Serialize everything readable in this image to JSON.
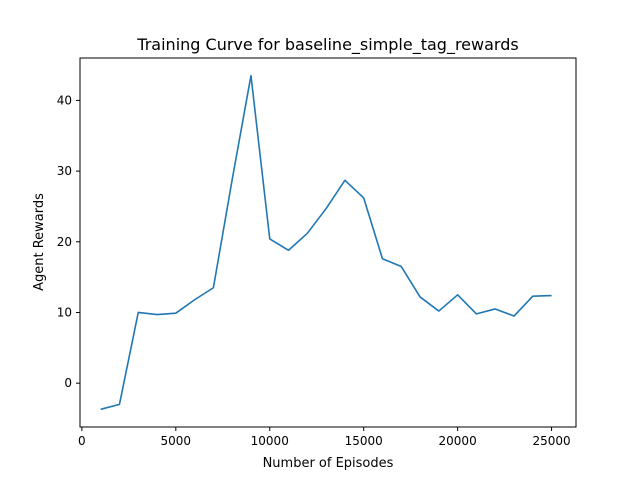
{
  "chart_data": {
    "type": "line",
    "title": "Training Curve for baseline_simple_tag_rewards",
    "xlabel": "Number of Episodes",
    "ylabel": "Agent Rewards",
    "xlim": [
      -100,
      26300
    ],
    "ylim": [
      -6.2,
      46.0
    ],
    "xticks": [
      0,
      5000,
      10000,
      15000,
      20000,
      25000
    ],
    "yticks": [
      0,
      10,
      20,
      30,
      40
    ],
    "grid": false,
    "legend": "none",
    "series": [
      {
        "color": "#1f77b4",
        "x": [
          1000,
          2000,
          3000,
          4000,
          5000,
          6000,
          7000,
          8000,
          9000,
          10000,
          11000,
          12000,
          13000,
          14000,
          15000,
          16000,
          17000,
          18000,
          19000,
          20000,
          21000,
          22000,
          23000,
          24000,
          25000
        ],
        "y": [
          -3.7,
          -3.0,
          10.0,
          9.7,
          9.9,
          11.8,
          13.5,
          28.8,
          43.5,
          20.4,
          18.8,
          21.2,
          24.7,
          28.7,
          26.2,
          17.6,
          16.5,
          12.2,
          10.2,
          12.5,
          9.8,
          10.5,
          9.5,
          12.3,
          12.4
        ]
      }
    ]
  }
}
